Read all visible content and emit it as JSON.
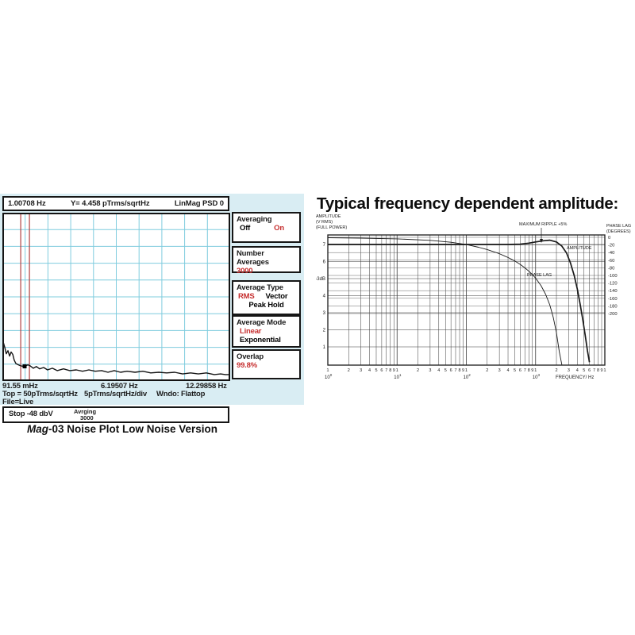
{
  "colors": {
    "accent_red": "#c62f2f",
    "grid_cyan": "#7fccde",
    "cursor_red": "#b04040",
    "panel_bg": "#d9edf3",
    "ink": "#161616"
  },
  "left_chart": {
    "header": {
      "marker_freq": "1.00708 Hz",
      "marker_value": "Y= 4.458 pTrms/sqrtHz",
      "mode": "LinMag PSD 0"
    },
    "sidebar": [
      {
        "title": "Averaging",
        "items": [
          {
            "label": "Off"
          },
          {
            "label": "On"
          }
        ]
      },
      {
        "title": "Number Averages",
        "items": [
          {
            "label": "3000"
          }
        ]
      },
      {
        "title": "Average Type",
        "items": [
          {
            "label": "RMS"
          },
          {
            "label": "Vector"
          },
          {
            "label": "Peak Hold"
          }
        ]
      },
      {
        "title": "Average Mode",
        "items": [
          {
            "label": "Linear"
          },
          {
            "label": "Exponential"
          }
        ]
      },
      {
        "title": "Overlap",
        "items": [
          {
            "label": "99.8%"
          }
        ]
      }
    ],
    "x_labels": [
      "91.55 mHz",
      "6.19507 Hz",
      "12.29858 Hz"
    ],
    "scale_line": {
      "top": "Top = 50pTrms/sqrtHz",
      "div": "5pTrms/sqrtHz/div",
      "window": "Wndo:  Flattop"
    },
    "file_line": "File=Live",
    "status": {
      "stop": "Stop  -48 dbV",
      "avg_label": "Avrging",
      "avg_value": "3000"
    },
    "caption": {
      "italic": "Mag",
      "rest": "-03 Noise Plot Low Noise Version"
    }
  },
  "right_chart": {
    "title": "Typical frequency dependent amplitude:"
  },
  "chart_data": [
    {
      "id": "noise_psd",
      "type": "line",
      "title": "Mag-03 Noise Plot Low Noise Version",
      "x_axis": {
        "tick_labels": [
          "91.55 mHz",
          "6.19507 Hz",
          "12.29858 Hz"
        ],
        "max_hz": 12.29858
      },
      "y_axis": {
        "top": 50,
        "per_div": 5,
        "divisions": 10,
        "unit": "pTrms/sqrtHz"
      },
      "window": "Flattop",
      "marker_readout": {
        "freq_hz": 1.00708,
        "value": 4.458
      },
      "marker_plot": {
        "freq_hz": 1.2,
        "value": 4.35
      },
      "cursor_lines_hz": [
        0.99,
        1.46
      ],
      "grid": {
        "cols": 10,
        "rows": 10
      },
      "trace": [
        [
          0.04,
          11.7
        ],
        [
          0.13,
          10.0
        ],
        [
          0.21,
          8.1
        ],
        [
          0.3,
          9.0
        ],
        [
          0.39,
          7.4
        ],
        [
          0.47,
          8.6
        ],
        [
          0.56,
          7.9
        ],
        [
          0.64,
          6.2
        ],
        [
          0.73,
          5.2
        ],
        [
          0.86,
          4.8
        ],
        [
          0.99,
          4.5
        ],
        [
          1.1,
          4.4
        ],
        [
          1.2,
          4.3
        ],
        [
          1.37,
          4.8
        ],
        [
          1.5,
          4.5
        ],
        [
          1.67,
          3.8
        ],
        [
          1.84,
          4.3
        ],
        [
          2.01,
          3.6
        ],
        [
          2.23,
          4.0
        ],
        [
          2.44,
          3.3
        ],
        [
          2.7,
          3.8
        ],
        [
          2.96,
          3.1
        ],
        [
          3.3,
          3.6
        ],
        [
          3.64,
          3.1
        ],
        [
          3.99,
          3.3
        ],
        [
          4.33,
          2.9
        ],
        [
          4.67,
          3.3
        ],
        [
          5.01,
          2.9
        ],
        [
          5.36,
          3.1
        ],
        [
          5.7,
          2.6
        ],
        [
          6.04,
          3.1
        ],
        [
          6.38,
          2.6
        ],
        [
          6.73,
          2.9
        ],
        [
          7.16,
          2.6
        ],
        [
          7.58,
          2.9
        ],
        [
          8.01,
          2.4
        ],
        [
          8.44,
          2.6
        ],
        [
          8.87,
          2.4
        ],
        [
          9.3,
          2.6
        ],
        [
          9.73,
          2.1
        ],
        [
          10.16,
          2.4
        ],
        [
          10.58,
          2.1
        ],
        [
          11.01,
          2.4
        ],
        [
          11.44,
          1.9
        ],
        [
          11.78,
          2.1
        ],
        [
          12.04,
          1.9
        ],
        [
          12.26,
          1.9
        ]
      ]
    },
    {
      "id": "freq_response",
      "type": "line",
      "title": "Typical frequency dependent amplitude:",
      "x_axis": {
        "scale": "log",
        "decade_exponents": [
          0,
          1,
          2,
          3
        ],
        "minor_digit_labels": [
          "2",
          "3",
          "4",
          "5",
          "6",
          "7",
          "8",
          "9"
        ],
        "decade_digit_label": "1",
        "label": "FREQUENCY/ Hz"
      },
      "left_axis": {
        "label_lines": [
          "AMPLITUDE",
          "(V RMS)",
          "(FULL POWER)"
        ],
        "ticks": [
          {
            "v": 7,
            "t": "7"
          },
          {
            "v": 6,
            "t": "6"
          },
          {
            "v": 5,
            "t": "-3dB"
          },
          {
            "v": 4,
            "t": "4"
          },
          {
            "v": 3,
            "t": "3"
          },
          {
            "v": 2,
            "t": "2"
          },
          {
            "v": 1,
            "t": "1"
          }
        ]
      },
      "right_axis": {
        "label_lines": [
          "PHASE LAG",
          "(DEGREES)"
        ],
        "ticks": [
          0,
          -20,
          -40,
          -60,
          -80,
          -100,
          -120,
          -140,
          -160,
          -180,
          -200
        ]
      },
      "annotations": {
        "ripple": "MAXIMUM RIPPLE +5%",
        "amplitude_label": "AMPLITUDE",
        "phase_label": "PHASE LAG"
      },
      "series": [
        {
          "name": "AMPLITUDE",
          "axis": "left",
          "points": [
            [
              1,
              7
            ],
            [
              5,
              7
            ],
            [
              10,
              7
            ],
            [
              50,
              7
            ],
            [
              100,
              7
            ],
            [
              200,
              7
            ],
            [
              400,
              7
            ],
            [
              600,
              7.02
            ],
            [
              800,
              7.08
            ],
            [
              1000,
              7.15
            ],
            [
              1300,
              7.22
            ],
            [
              1600,
              7.25
            ],
            [
              2000,
              7.15
            ],
            [
              2400,
              6.9
            ],
            [
              2800,
              6.5
            ],
            [
              3200,
              5.9
            ],
            [
              3600,
              5.2
            ],
            [
              4000,
              4.4
            ],
            [
              4400,
              3.5
            ],
            [
              4800,
              2.6
            ],
            [
              5200,
              1.7
            ],
            [
              5600,
              0.8
            ],
            [
              6000,
              0.1
            ]
          ]
        },
        {
          "name": "PHASE LAG",
          "axis": "right",
          "points": [
            [
              1,
              -1
            ],
            [
              3,
              -2
            ],
            [
              10,
              -4
            ],
            [
              30,
              -8
            ],
            [
              60,
              -13
            ],
            [
              100,
              -19
            ],
            [
              150,
              -26
            ],
            [
              200,
              -32
            ],
            [
              300,
              -43
            ],
            [
              400,
              -53
            ],
            [
              500,
              -62
            ],
            [
              600,
              -71
            ],
            [
              700,
              -80
            ],
            [
              800,
              -89
            ],
            [
              900,
              -98
            ],
            [
              1000,
              -107
            ],
            [
              1200,
              -127
            ],
            [
              1400,
              -150
            ],
            [
              1600,
              -177
            ],
            [
              1800,
              -210
            ],
            [
              2000,
              -250
            ],
            [
              2200,
              -300
            ],
            [
              2400,
              -335
            ]
          ]
        }
      ]
    }
  ]
}
